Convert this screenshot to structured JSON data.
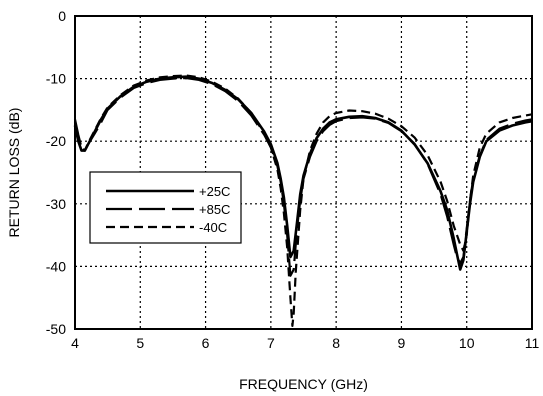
{
  "chart_data": {
    "type": "line",
    "title": "",
    "xlabel": "FREQUENCY (GHz)",
    "ylabel": "RETURN LOSS (dB)",
    "xlim": [
      4,
      11
    ],
    "ylim": [
      -50,
      0
    ],
    "xticks": [
      "4",
      "5",
      "6",
      "7",
      "8",
      "9",
      "10",
      "11"
    ],
    "yticks": [
      "0",
      "-10",
      "-20",
      "-30",
      "-40",
      "-50"
    ],
    "grid": true,
    "legend_position": "left-middle",
    "series": [
      {
        "name": "+25C",
        "style": "solid",
        "x": [
          4.0,
          4.05,
          4.1,
          4.15,
          4.2,
          4.3,
          4.4,
          4.5,
          4.7,
          4.9,
          5.1,
          5.3,
          5.5,
          5.7,
          5.9,
          6.1,
          6.3,
          6.5,
          6.7,
          6.9,
          7.0,
          7.1,
          7.15,
          7.2,
          7.25,
          7.3,
          7.35,
          7.4,
          7.45,
          7.5,
          7.6,
          7.7,
          7.8,
          7.9,
          8.0,
          8.2,
          8.4,
          8.6,
          8.8,
          9.0,
          9.2,
          9.4,
          9.6,
          9.7,
          9.8,
          9.85,
          9.9,
          9.95,
          10.0,
          10.05,
          10.1,
          10.2,
          10.3,
          10.5,
          10.7,
          10.9,
          11.0
        ],
        "y": [
          -17.5,
          -20.0,
          -21.5,
          -21.5,
          -20.5,
          -18.5,
          -16.5,
          -14.8,
          -12.8,
          -11.3,
          -10.5,
          -10.0,
          -9.8,
          -9.7,
          -10.0,
          -10.7,
          -11.8,
          -13.3,
          -15.5,
          -18.5,
          -20.5,
          -23.5,
          -26.0,
          -29.0,
          -33.5,
          -38.5,
          -37.5,
          -33.0,
          -28.5,
          -25.5,
          -22.0,
          -19.5,
          -18.0,
          -17.0,
          -16.5,
          -16.1,
          -16.0,
          -16.3,
          -17.0,
          -18.3,
          -20.5,
          -23.5,
          -28.0,
          -31.0,
          -35.5,
          -38.0,
          -40.5,
          -39.0,
          -34.5,
          -30.0,
          -26.5,
          -22.5,
          -20.0,
          -18.3,
          -17.5,
          -17.0,
          -16.8
        ]
      },
      {
        "name": "+85C",
        "style": "long-dash",
        "x": [
          4.0,
          4.05,
          4.1,
          4.15,
          4.2,
          4.3,
          4.4,
          4.5,
          4.7,
          4.9,
          5.1,
          5.3,
          5.5,
          5.7,
          5.9,
          6.1,
          6.3,
          6.5,
          6.7,
          6.9,
          7.0,
          7.1,
          7.15,
          7.2,
          7.25,
          7.3,
          7.35,
          7.4,
          7.45,
          7.5,
          7.6,
          7.7,
          7.8,
          7.9,
          8.0,
          8.2,
          8.4,
          8.6,
          8.8,
          9.0,
          9.2,
          9.4,
          9.6,
          9.7,
          9.8,
          9.85,
          9.9,
          9.95,
          10.0,
          10.05,
          10.1,
          10.2,
          10.3,
          10.5,
          10.7,
          10.9,
          11.0
        ],
        "y": [
          -16.5,
          -19.0,
          -21.0,
          -21.5,
          -20.5,
          -18.8,
          -17.0,
          -15.0,
          -13.0,
          -11.5,
          -10.7,
          -10.2,
          -10.0,
          -9.9,
          -10.2,
          -10.9,
          -12.0,
          -13.6,
          -15.9,
          -19.0,
          -21.0,
          -24.0,
          -26.5,
          -30.0,
          -35.0,
          -41.5,
          -40.5,
          -34.0,
          -29.5,
          -26.0,
          -22.5,
          -20.0,
          -18.4,
          -17.4,
          -16.8,
          -16.3,
          -16.2,
          -16.4,
          -17.1,
          -18.4,
          -20.4,
          -23.6,
          -28.5,
          -32.0,
          -36.5,
          -38.5,
          -39.5,
          -38.5,
          -34.0,
          -29.5,
          -26.0,
          -22.3,
          -19.8,
          -18.0,
          -17.2,
          -16.7,
          -16.5
        ]
      },
      {
        "name": "-40C",
        "style": "short-dash",
        "x": [
          4.0,
          4.05,
          4.1,
          4.15,
          4.2,
          4.3,
          4.4,
          4.5,
          4.7,
          4.9,
          5.1,
          5.3,
          5.5,
          5.7,
          5.9,
          6.1,
          6.3,
          6.5,
          6.7,
          6.9,
          7.0,
          7.1,
          7.15,
          7.2,
          7.25,
          7.3,
          7.33,
          7.35,
          7.38,
          7.45,
          7.5,
          7.6,
          7.7,
          7.8,
          7.9,
          8.0,
          8.2,
          8.4,
          8.6,
          8.8,
          9.0,
          9.2,
          9.4,
          9.6,
          9.7,
          9.8,
          9.9,
          9.95,
          10.0,
          10.05,
          10.1,
          10.2,
          10.3,
          10.5,
          10.7,
          10.9,
          11.0
        ],
        "y": [
          -17.0,
          -19.5,
          -21.0,
          -21.5,
          -20.3,
          -18.3,
          -16.3,
          -14.6,
          -12.6,
          -11.1,
          -10.3,
          -9.8,
          -9.6,
          -9.5,
          -9.8,
          -10.5,
          -11.6,
          -13.2,
          -15.5,
          -18.8,
          -21.0,
          -24.5,
          -27.5,
          -31.5,
          -37.0,
          -45.0,
          -49.5,
          -47.5,
          -41.0,
          -31.0,
          -26.0,
          -21.5,
          -18.8,
          -17.0,
          -16.0,
          -15.5,
          -15.1,
          -15.2,
          -15.6,
          -16.4,
          -17.6,
          -19.4,
          -22.2,
          -26.5,
          -29.5,
          -33.5,
          -36.5,
          -37.5,
          -35.0,
          -29.5,
          -25.5,
          -21.0,
          -18.8,
          -17.0,
          -16.3,
          -15.9,
          -15.7
        ]
      }
    ]
  }
}
